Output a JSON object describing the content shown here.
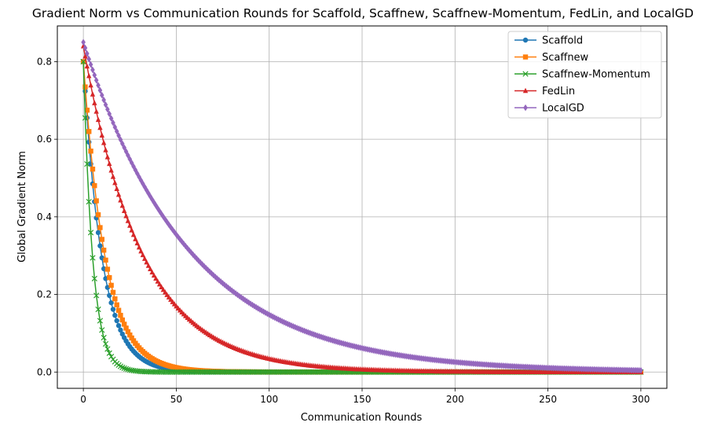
{
  "chart_data": {
    "type": "line",
    "title": "Gradient Norm vs Communication Rounds for Scaffold, Scaffnew, Scaffnew-Momentum, FedLin, and LocalGD",
    "xlabel": "Communication Rounds",
    "ylabel": "Global Gradient Norm",
    "xlim": [
      -14,
      314
    ],
    "ylim": [
      -0.042,
      0.892
    ],
    "xticks": [
      0,
      50,
      100,
      150,
      200,
      250,
      300
    ],
    "yticks": [
      0.0,
      0.2,
      0.4,
      0.6,
      0.8
    ],
    "xtick_labels": [
      "0",
      "50",
      "100",
      "150",
      "200",
      "250",
      "300"
    ],
    "ytick_labels": [
      "0.0",
      "0.2",
      "0.4",
      "0.6",
      "0.8"
    ],
    "grid": true,
    "legend_position": "top-right",
    "x_range": [
      0,
      300
    ],
    "series": [
      {
        "name": "Scaffold",
        "color": "#1f77b4",
        "marker": "circle",
        "start": 0.8,
        "decay_rate": 0.1,
        "points": 301
      },
      {
        "name": "Scaffnew",
        "color": "#ff7f0e",
        "marker": "square",
        "start": 0.8,
        "decay_rate": 0.085,
        "points": 301
      },
      {
        "name": "Scaffnew-Momentum",
        "color": "#2ca02c",
        "marker": "x",
        "start": 0.8,
        "decay_rate": 0.2,
        "points": 301
      },
      {
        "name": "FedLin",
        "color": "#d62728",
        "marker": "triangle",
        "start": 0.84,
        "decay_rate": 0.032,
        "points": 301
      },
      {
        "name": "LocalGD",
        "color": "#9467bd",
        "marker": "diamond",
        "start": 0.85,
        "decay_rate": 0.0175,
        "points": 301
      }
    ]
  }
}
